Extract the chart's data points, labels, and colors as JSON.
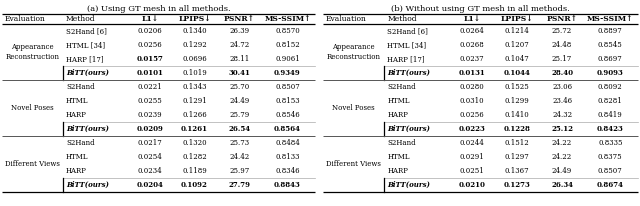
{
  "title_a": "(a) Using GT mesh in all methods.",
  "title_b": "(b) Without using GT mesh in all methods.",
  "headers": [
    "Evaluation",
    "Method",
    "L1↓",
    "LPIPS↓",
    "PSNR↑",
    "MS-SSIM↑"
  ],
  "table_a": {
    "groups": [
      {
        "eval_label": "Appearance\nReconstruction",
        "rows": [
          [
            "S2Hand [6]",
            "0.0206",
            "0.1340",
            "26.39",
            "0.8570"
          ],
          [
            "HTML [34]",
            "0.0256",
            "0.1292",
            "24.72",
            "0.8152"
          ],
          [
            "HARP [17]",
            "0.0157",
            "0.0696",
            "28.11",
            "0.9061"
          ]
        ],
        "ours_row": [
          "BiTT(ours)",
          "0.0101",
          "0.1019",
          "30.41",
          "0.9349"
        ],
        "bold_ours": [
          true,
          true,
          false,
          true,
          true
        ],
        "bold_others": [
          [
            false,
            false,
            false,
            false,
            false
          ],
          [
            false,
            false,
            false,
            false,
            false
          ],
          [
            false,
            true,
            false,
            false,
            false
          ]
        ]
      },
      {
        "eval_label": "Novel Poses",
        "rows": [
          [
            "S2Hand",
            "0.0221",
            "0.1343",
            "25.70",
            "0.8507"
          ],
          [
            "HTML",
            "0.0255",
            "0.1291",
            "24.49",
            "0.8153"
          ],
          [
            "HARP",
            "0.0239",
            "0.1266",
            "25.79",
            "0.8546"
          ]
        ],
        "ours_row": [
          "BiTT(ours)",
          "0.0209",
          "0.1261",
          "26.54",
          "0.8564"
        ],
        "bold_ours": [
          true,
          true,
          true,
          true,
          true
        ],
        "bold_others": [
          [
            false,
            false,
            false,
            false,
            false
          ],
          [
            false,
            false,
            false,
            false,
            false
          ],
          [
            false,
            false,
            false,
            false,
            false
          ]
        ]
      },
      {
        "eval_label": "Different Views",
        "rows": [
          [
            "S2Hand",
            "0.0217",
            "0.1320",
            "25.73",
            "0.8484"
          ],
          [
            "HTML",
            "0.0254",
            "0.1282",
            "24.42",
            "0.8133"
          ],
          [
            "HARP",
            "0.0234",
            "0.1189",
            "25.97",
            "0.8346"
          ]
        ],
        "ours_row": [
          "BiTT(ours)",
          "0.0204",
          "0.1092",
          "27.79",
          "0.8843"
        ],
        "bold_ours": [
          true,
          true,
          true,
          true,
          true
        ],
        "bold_others": [
          [
            false,
            false,
            false,
            false,
            false
          ],
          [
            false,
            false,
            false,
            false,
            false
          ],
          [
            false,
            false,
            false,
            false,
            false
          ]
        ]
      }
    ]
  },
  "table_b": {
    "groups": [
      {
        "eval_label": "Appearance\nReconstruction",
        "rows": [
          [
            "S2Hand [6]",
            "0.0264",
            "0.1214",
            "25.72",
            "0.8897"
          ],
          [
            "HTML [34]",
            "0.0268",
            "0.1207",
            "24.48",
            "0.8545"
          ],
          [
            "HARP [17]",
            "0.0237",
            "0.1047",
            "25.17",
            "0.8697"
          ]
        ],
        "ours_row": [
          "BiTT(ours)",
          "0.0131",
          "0.1044",
          "28.40",
          "0.9093"
        ],
        "bold_ours": [
          true,
          true,
          true,
          true,
          true
        ],
        "bold_others": [
          [
            false,
            false,
            false,
            false,
            false
          ],
          [
            false,
            false,
            false,
            false,
            false
          ],
          [
            false,
            false,
            false,
            false,
            false
          ]
        ]
      },
      {
        "eval_label": "Novel Poses",
        "rows": [
          [
            "S2Hand",
            "0.0280",
            "0.1525",
            "23.06",
            "0.8092"
          ],
          [
            "HTML",
            "0.0310",
            "0.1299",
            "23.46",
            "0.8281"
          ],
          [
            "HARP",
            "0.0256",
            "0.1410",
            "24.32",
            "0.8419"
          ]
        ],
        "ours_row": [
          "BiTT(ours)",
          "0.0223",
          "0.1228",
          "25.12",
          "0.8423"
        ],
        "bold_ours": [
          true,
          true,
          true,
          true,
          true
        ],
        "bold_others": [
          [
            false,
            false,
            false,
            false,
            false
          ],
          [
            false,
            false,
            false,
            false,
            false
          ],
          [
            false,
            false,
            false,
            false,
            false
          ]
        ]
      },
      {
        "eval_label": "Different Views",
        "rows": [
          [
            "S2Hand",
            "0.0244",
            "0.1512",
            "24.22",
            "0.8335"
          ],
          [
            "HTML",
            "0.0291",
            "0.1297",
            "24.22",
            "0.8375"
          ],
          [
            "HARP",
            "0.0251",
            "0.1367",
            "24.49",
            "0.8507"
          ]
        ],
        "ours_row": [
          "BiTT(ours)",
          "0.0210",
          "0.1273",
          "26.34",
          "0.8674"
        ],
        "bold_ours": [
          true,
          true,
          true,
          true,
          true
        ],
        "bold_others": [
          [
            false,
            false,
            false,
            false,
            false
          ],
          [
            false,
            false,
            false,
            false,
            false
          ],
          [
            false,
            false,
            false,
            false,
            false
          ]
        ]
      }
    ]
  },
  "bg_color": "#ffffff",
  "text_color": "#000000"
}
